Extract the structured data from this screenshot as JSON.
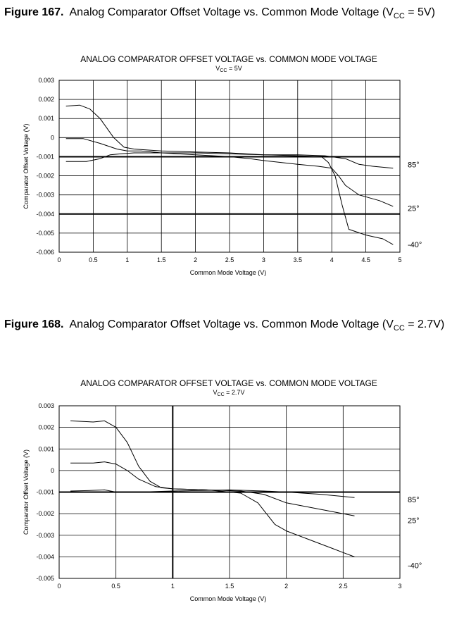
{
  "figures": [
    {
      "num": "Figure 167.",
      "caption_pre": "Analog Comparator Offset Voltage vs. Common Mode Voltage (V",
      "caption_sub": "CC",
      "caption_post": " = 5V)"
    },
    {
      "num": "Figure 168.",
      "caption_pre": "Analog Comparator Offset Voltage vs. Common Mode Voltage (V",
      "caption_sub": "CC",
      "caption_post": " = 2.7V)"
    }
  ],
  "chart_data": [
    {
      "type": "line",
      "title": "ANALOG COMPARATOR OFFSET VOLTAGE vs. COMMON MODE VOLTAGE",
      "subtitle_pre": "V",
      "subtitle_sub": "CC",
      "subtitle_post": " = 5V",
      "xlabel": "Common Mode Voltage (V)",
      "ylabel": "Comparator Offset Voltage (V)",
      "xlim": [
        0,
        5
      ],
      "ylim": [
        -0.006,
        0.003
      ],
      "xticks": [
        "0",
        "0.5",
        "1",
        "1.5",
        "2",
        "2.5",
        "3",
        "3.5",
        "4",
        "4.5",
        "5"
      ],
      "yticks": [
        "0.003",
        "0.002",
        "0.001",
        "0",
        "-0.001",
        "-0.002",
        "-0.003",
        "-0.004",
        "-0.005",
        "-0.006"
      ],
      "grid": true,
      "series": [
        {
          "name": "85°",
          "x": [
            0.1,
            0.4,
            0.6,
            0.75,
            0.9,
            1.1,
            1.5,
            2.0,
            2.5,
            3.0,
            3.5,
            3.9,
            4.2,
            4.4,
            4.6,
            4.9
          ],
          "y": [
            -0.00125,
            -0.00125,
            -0.0011,
            -0.0009,
            -0.00085,
            -0.0008,
            -0.0008,
            -0.0008,
            -0.00085,
            -0.0009,
            -0.0009,
            -0.00095,
            -0.0011,
            -0.0014,
            -0.0015,
            -0.0016
          ]
        },
        {
          "name": "25°",
          "x": [
            0.1,
            0.35,
            0.6,
            0.85,
            1.0,
            1.2,
            1.5,
            2.0,
            2.5,
            2.8,
            3.0,
            3.5,
            3.8,
            4.0,
            4.1,
            4.2,
            4.4,
            4.7,
            4.9
          ],
          "y": [
            -5e-05,
            -5e-05,
            -0.0003,
            -0.0006,
            -0.0007,
            -0.0007,
            -0.0008,
            -0.0009,
            -0.001,
            -0.0011,
            -0.0012,
            -0.0014,
            -0.0015,
            -0.0016,
            -0.002,
            -0.0025,
            -0.003,
            -0.0033,
            -0.0036
          ]
        },
        {
          "name": "-40°",
          "x": [
            0.1,
            0.3,
            0.45,
            0.6,
            0.7,
            0.8,
            0.95,
            1.1,
            1.5,
            2.0,
            2.5,
            3.0,
            3.5,
            3.85,
            3.95,
            4.05,
            4.15,
            4.25,
            4.5,
            4.75,
            4.9
          ],
          "y": [
            0.00165,
            0.0017,
            0.0015,
            0.001,
            0.0005,
            0.0,
            -0.0005,
            -0.0006,
            -0.0007,
            -0.00075,
            -0.0008,
            -0.0009,
            -0.00095,
            -0.001,
            -0.0013,
            -0.002,
            -0.0035,
            -0.0048,
            -0.0051,
            -0.0053,
            -0.0056
          ]
        }
      ]
    },
    {
      "type": "line",
      "title": "ANALOG COMPARATOR OFFSET VOLTAGE vs. COMMON MODE VOLTAGE",
      "subtitle_pre": "V",
      "subtitle_sub": "CC",
      "subtitle_post": " = 2.7V",
      "xlabel": "Common Mode Voltage (V)",
      "ylabel": "Comparator Offset Voltage (V)",
      "xlim": [
        0,
        3
      ],
      "ylim": [
        -0.005,
        0.003
      ],
      "xticks": [
        "0",
        "0.5",
        "1",
        "1.5",
        "2",
        "2.5",
        "3"
      ],
      "yticks": [
        "0.003",
        "0.002",
        "0.001",
        "0",
        "-0.001",
        "-0.002",
        "-0.003",
        "-0.004",
        "-0.005"
      ],
      "grid": true,
      "series": [
        {
          "name": "85°",
          "x": [
            0.1,
            0.25,
            0.4,
            0.5,
            0.7,
            1.0,
            1.5,
            1.8,
            2.0,
            2.3,
            2.6
          ],
          "y": [
            -0.00095,
            -0.00093,
            -0.0009,
            -0.001,
            -0.001,
            -0.00095,
            -0.0009,
            -0.00095,
            -0.001,
            -0.0011,
            -0.00125
          ]
        },
        {
          "name": "25°",
          "x": [
            0.1,
            0.3,
            0.4,
            0.5,
            0.6,
            0.7,
            0.85,
            1.0,
            1.3,
            1.6,
            1.8,
            2.0,
            2.3,
            2.6
          ],
          "y": [
            0.00035,
            0.00035,
            0.0004,
            0.0003,
            0.0,
            -0.0004,
            -0.00075,
            -0.00085,
            -0.0009,
            -0.00095,
            -0.0011,
            -0.0015,
            -0.0018,
            -0.0021
          ]
        },
        {
          "name": "-40°",
          "x": [
            0.1,
            0.3,
            0.4,
            0.5,
            0.6,
            0.7,
            0.8,
            0.9,
            1.0,
            1.3,
            1.6,
            1.75,
            1.9,
            2.0,
            2.2,
            2.4,
            2.5,
            2.6
          ],
          "y": [
            0.0023,
            0.00225,
            0.0023,
            0.002,
            0.0013,
            0.0002,
            -0.0005,
            -0.0008,
            -0.00085,
            -0.0009,
            -0.00105,
            -0.0015,
            -0.0025,
            -0.0028,
            -0.0032,
            -0.0036,
            -0.0038,
            -0.004
          ]
        }
      ]
    }
  ]
}
